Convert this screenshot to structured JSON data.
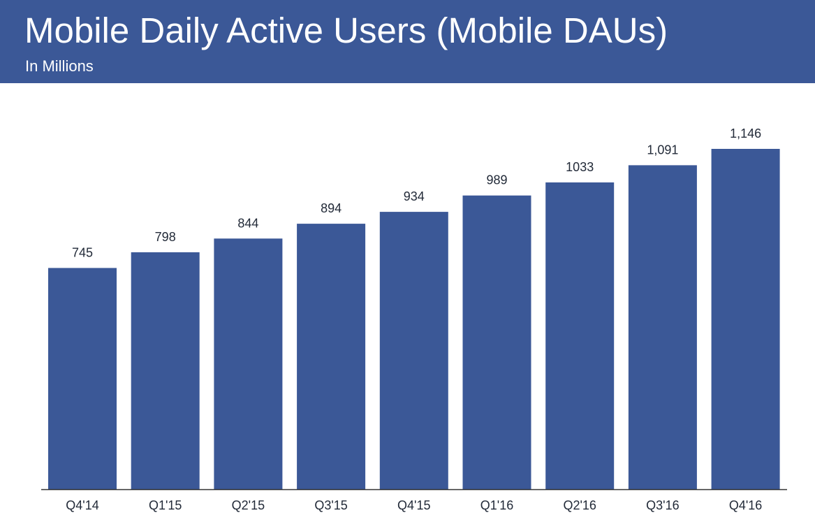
{
  "header": {
    "title": "Mobile Daily Active Users (Mobile DAUs)",
    "subtitle": "In Millions"
  },
  "colors": {
    "header_background": "#3b5897",
    "bar": "#3b5897",
    "axis": "#333333",
    "text": "#222a38"
  },
  "chart_data": {
    "type": "bar",
    "title": "Mobile Daily Active Users (Mobile DAUs)",
    "subtitle": "In Millions",
    "categories": [
      "Q4'14",
      "Q1'15",
      "Q2'15",
      "Q3'15",
      "Q4'15",
      "Q1'16",
      "Q2'16",
      "Q3'16",
      "Q4'16"
    ],
    "values": [
      745,
      798,
      844,
      894,
      934,
      989,
      1033,
      1091,
      1146
    ],
    "value_labels": [
      "745",
      "798",
      "844",
      "894",
      "934",
      "989",
      "1033",
      "1,091",
      "1,146"
    ],
    "xlabel": "",
    "ylabel": "",
    "ylim": [
      0,
      1146
    ],
    "grid": false,
    "legend": "none"
  }
}
